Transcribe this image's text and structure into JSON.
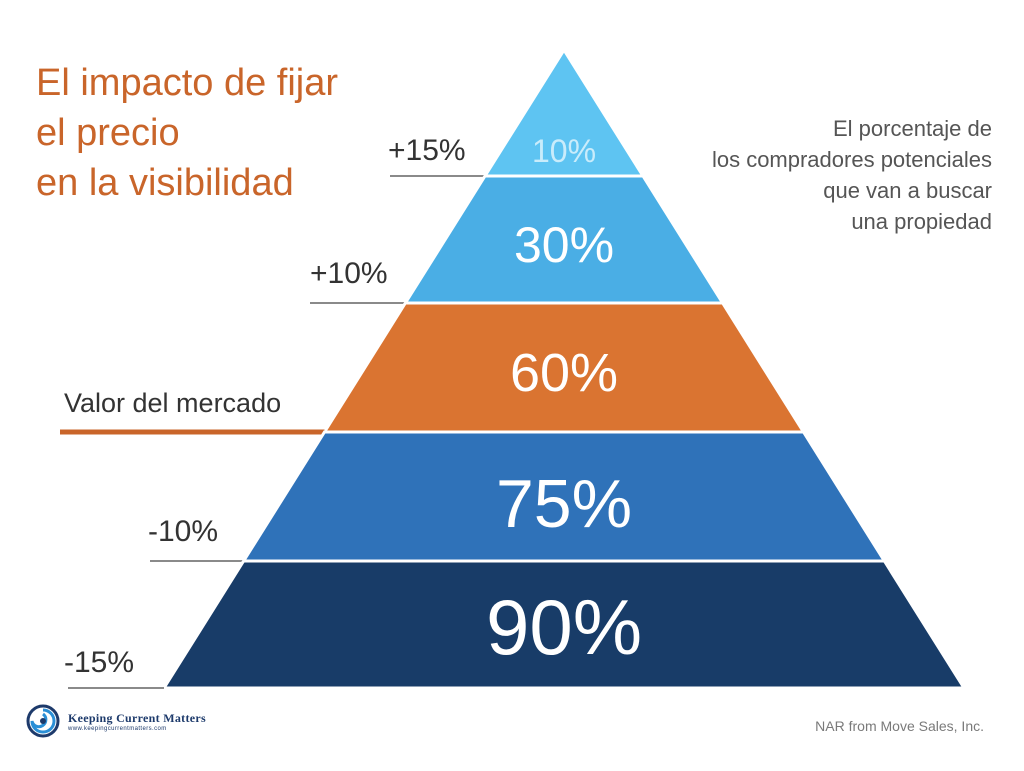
{
  "title_lines": [
    "El impacto de fijar",
    "el precio",
    "en la visibilidad"
  ],
  "subtitle_lines": [
    "El porcentaje de",
    "los compradores potenciales",
    "que van a buscar",
    "una propiedad"
  ],
  "levels": [
    {
      "value": "10%",
      "label": "+15%",
      "color": "#5ec4f2",
      "text_color": "#c9ecfb"
    },
    {
      "value": "30%",
      "label": "+10%",
      "color": "#4aaee5",
      "text_color": "#ffffff"
    },
    {
      "value": "60%",
      "label": "Valor del mercado",
      "color": "#da7431",
      "text_color": "#ffffff",
      "label_color": "#c9652a",
      "highlight": true
    },
    {
      "value": "75%",
      "label": "-10%",
      "color": "#2f72b9",
      "text_color": "#ffffff"
    },
    {
      "value": "90%",
      "label": "-15%",
      "color": "#183c68",
      "text_color": "#ffffff"
    }
  ],
  "logo": {
    "name": "Keeping Current Matters",
    "url": "www.keepingcurrentmatters.com",
    "icon": "swirl-logo-icon"
  },
  "source": "NAR from Move Sales, Inc."
}
